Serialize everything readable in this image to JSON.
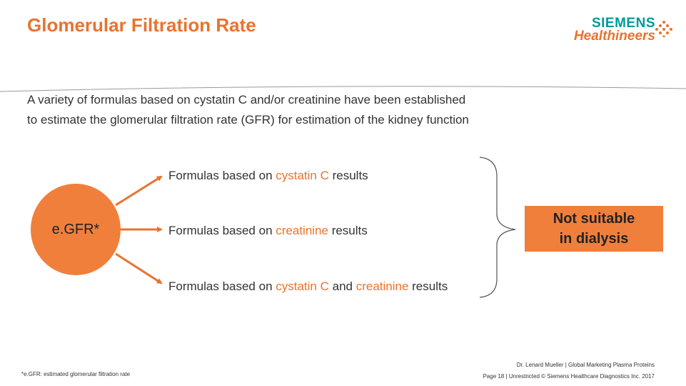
{
  "slide": {
    "title": "Glomerular Filtration Rate"
  },
  "logo": {
    "line1": "SIEMENS",
    "line2": "Healthineers",
    "colors": {
      "siemens": "#009999",
      "healthineers": "#e8732f"
    }
  },
  "intro": {
    "line1": "A variety of formulas based on cystatin C and/or creatinine have been established",
    "line2": "to estimate the glomerular filtration rate (GFR) for estimation of the kidney function"
  },
  "diagram": {
    "source_label": "e.GFR*",
    "formulas": [
      {
        "prefix": "Formulas based on ",
        "highlight": "cystatin C",
        "suffix": " results"
      },
      {
        "prefix": "Formulas based on ",
        "highlight": "creatinine",
        "suffix": " results"
      },
      {
        "prefix": "Formulas based on ",
        "highlight": "cystatin C",
        "middle": " and ",
        "highlight2": "creatinine",
        "suffix": " results"
      }
    ],
    "notice_line1": "Not suitable",
    "notice_line2": "in dialysis"
  },
  "footnote": "*e.GFR: estimated glomerular filtration rate",
  "footer": {
    "line1": "Dr. Lenard Mueller | Global Marketing Plasma Proteins",
    "line2": "Page 18 | Unrestricted © Siemens Healthcare Diagnostics Inc. 2017"
  },
  "colors": {
    "accent": "#e8732f",
    "fill": "#f07f3c",
    "text": "#333333"
  }
}
